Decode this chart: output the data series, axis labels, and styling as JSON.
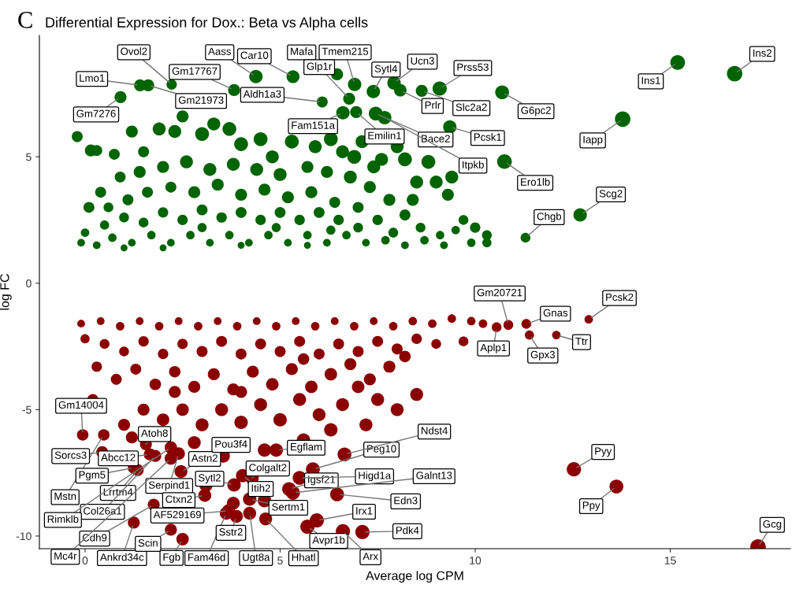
{
  "chart_data": {
    "type": "bubble",
    "title": "Differential Expression for Dox.: Beta vs Alpha cells",
    "xlabel": "Average log CPM",
    "ylabel": "log FC",
    "xlim": [
      -1.17,
      18.08
    ],
    "ylim": [
      -10.5,
      9.8
    ],
    "xticks": [
      0,
      5,
      10,
      15
    ],
    "yticks": [
      -10,
      -5,
      0,
      5
    ],
    "grid": false,
    "series": [
      {
        "color": "#006400",
        "x": [
          16.65,
          15.19,
          13.78,
          12.69,
          11.29,
          10.75,
          10.69,
          9.35,
          9.09,
          8.63,
          8.08,
          7.92,
          7.39,
          6.91,
          6.46,
          5.33,
          4.38,
          6.77,
          6.08,
          6.61,
          6.95,
          7.45,
          7.68,
          3.82,
          1.62,
          2.22,
          1.41,
          0.91,
          -0.2,
          0.15,
          0.3,
          0.75,
          1.2,
          1.5,
          1.9,
          2.3,
          2.5,
          3.0,
          3.3,
          3.7,
          4.0,
          4.5,
          4.8,
          5.3,
          5.9,
          6.3,
          6.6,
          6.9,
          7.1,
          7.6,
          8.0,
          8.2,
          8.8,
          9.4,
          9.3,
          9.0,
          8.4,
          9.7,
          10.0,
          10.3,
          10.3,
          9.9,
          9.5,
          9.1,
          8.6,
          8.2,
          7.8,
          7.3,
          6.8,
          6.2,
          5.7,
          5.0,
          4.4,
          3.8,
          3.2,
          2.6,
          2.0,
          1.4,
          0.9,
          0.4,
          0.1,
          0.6,
          1.1,
          1.6,
          2.2,
          2.8,
          3.4,
          4.0,
          4.6,
          5.2,
          5.8,
          6.4,
          7.0,
          7.5,
          7.9,
          7.0,
          6.5,
          6.0,
          5.5,
          5.0,
          4.5,
          4.0,
          3.5,
          3.0,
          2.5,
          2.0,
          1.5,
          1.0,
          0.5,
          0.0,
          -0.1,
          0.3,
          0.7,
          1.2,
          1.7,
          2.2,
          2.7,
          3.2,
          3.7,
          4.2,
          4.7,
          5.2,
          5.7,
          6.2,
          6.7,
          7.2,
          7.7,
          8.2,
          8.7,
          9.2,
          5.7,
          4.0,
          2.0,
          1.0,
          3.0,
          4.9,
          6.3,
          8.5,
          7.4
        ],
        "values": [
          8.29,
          8.73,
          6.49,
          2.7,
          1.8,
          4.81,
          7.55,
          6.18,
          7.7,
          7.61,
          7.63,
          7.92,
          7.58,
          7.86,
          8.26,
          8.17,
          8.17,
          7.3,
          7.17,
          6.74,
          6.77,
          6.71,
          6.55,
          7.64,
          7.83,
          7.86,
          7.83,
          7.36,
          5.8,
          5.25,
          5.25,
          5.1,
          6.0,
          5.2,
          6.1,
          6.0,
          6.6,
          5.9,
          6.3,
          6.1,
          5.5,
          5.7,
          5.0,
          5.6,
          5.4,
          5.7,
          5.2,
          5.0,
          5.6,
          4.9,
          5.4,
          4.9,
          4.8,
          4.2,
          3.5,
          4.0,
          3.3,
          2.5,
          2.2,
          1.9,
          1.6,
          1.6,
          2.1,
          1.9,
          2.2,
          2.7,
          3.3,
          3.8,
          4.2,
          4.4,
          4.6,
          4.3,
          4.5,
          4.7,
          4.5,
          4.8,
          4.6,
          4.4,
          4.2,
          3.6,
          3.0,
          3.0,
          3.3,
          3.6,
          3.8,
          3.6,
          3.9,
          3.5,
          3.7,
          3.4,
          3.6,
          3.2,
          3.0,
          2.5,
          2.0,
          2.2,
          2.5,
          2.8,
          2.5,
          2.8,
          2.5,
          2.8,
          2.6,
          2.9,
          2.5,
          2.8,
          2.4,
          2.6,
          2.3,
          2.0,
          1.6,
          1.5,
          1.8,
          1.6,
          1.9,
          1.6,
          1.9,
          1.6,
          1.9,
          1.6,
          1.9,
          1.6,
          1.9,
          1.6,
          1.9,
          1.6,
          1.7,
          1.5,
          1.7,
          1.5,
          1.5,
          1.5,
          1.4,
          1.4,
          2.2,
          2.2,
          2.1,
          4.0,
          4.6
        ],
        "sizes": [
          1,
          0.9,
          1,
          0.75,
          0.4,
          0.9,
          0.8,
          0.75,
          0.85,
          0.6,
          0.65,
          0.75,
          0.75,
          0.75,
          0.6,
          0.7,
          0.75,
          0.6,
          0.5,
          0.75,
          0.6,
          0.8,
          0.75,
          0.6,
          0.6,
          0.45,
          0.6,
          0.6,
          0.5,
          0.6,
          0.5,
          0.5,
          0.6,
          0.5,
          0.7,
          0.7,
          0.6,
          0.8,
          0.7,
          0.8,
          0.8,
          0.8,
          0.7,
          0.8,
          0.7,
          0.8,
          0.7,
          0.8,
          0.7,
          0.7,
          0.7,
          0.8,
          0.8,
          0.7,
          0.6,
          0.7,
          0.6,
          0.4,
          0.45,
          0.4,
          0.35,
          0.3,
          0.3,
          0.3,
          0.4,
          0.5,
          0.6,
          0.6,
          0.7,
          0.6,
          0.6,
          0.7,
          0.7,
          0.7,
          0.7,
          0.7,
          0.6,
          0.6,
          0.5,
          0.5,
          0.5,
          0.4,
          0.5,
          0.5,
          0.5,
          0.6,
          0.6,
          0.6,
          0.6,
          0.6,
          0.6,
          0.5,
          0.5,
          0.45,
          0.4,
          0.4,
          0.45,
          0.5,
          0.45,
          0.5,
          0.45,
          0.5,
          0.45,
          0.5,
          0.45,
          0.45,
          0.4,
          0.4,
          0.35,
          0.3,
          0.25,
          0.25,
          0.3,
          0.25,
          0.3,
          0.25,
          0.3,
          0.25,
          0.3,
          0.25,
          0.3,
          0.25,
          0.3,
          0.25,
          0.3,
          0.25,
          0.3,
          0.25,
          0.3,
          0.25,
          0.2,
          0.2,
          0.2,
          0.2,
          0.35,
          0.35,
          0.35,
          0.7,
          0.7
        ]
      },
      {
        "color": "#8b0000",
        "x": [
          17.25,
          13.62,
          12.53,
          12.91,
          12.08,
          11.39,
          11.31,
          10.85,
          10.55,
          -0.06,
          1.56,
          0.48,
          0.44,
          1.66,
          1.25,
          1.35,
          1.8,
          2.2,
          2.4,
          1.76,
          2.2,
          1.25,
          2.2,
          3.68,
          2.5,
          3.62,
          3.88,
          4.22,
          4.63,
          3.07,
          2.46,
          3.82,
          3.54,
          4.04,
          4.22,
          4.28,
          5.23,
          4.9,
          5.5,
          5.33,
          5.84,
          6.65,
          6.46,
          5.94,
          5.7,
          7.11,
          6.61,
          -0.1,
          0.4,
          0.9,
          1.4,
          1.9,
          2.4,
          2.9,
          3.4,
          3.9,
          4.4,
          4.9,
          5.4,
          5.9,
          6.4,
          6.9,
          7.4,
          7.9,
          8.4,
          8.9,
          9.4,
          9.9,
          9.7,
          9.0,
          8.5,
          8.0,
          7.5,
          7.0,
          6.5,
          6.0,
          5.5,
          5.0,
          4.5,
          4.0,
          3.5,
          3.0,
          2.5,
          2.0,
          1.5,
          1.0,
          0.5,
          0.0,
          0.3,
          0.8,
          1.3,
          1.8,
          2.3,
          2.8,
          3.3,
          3.8,
          4.3,
          4.8,
          5.3,
          5.8,
          6.3,
          6.8,
          7.3,
          7.8,
          8.2,
          8.5,
          8.0,
          7.5,
          7.0,
          6.6,
          6.0,
          5.5,
          5.0,
          4.5,
          4.0,
          3.5,
          3.0,
          2.5,
          2.0,
          1.5,
          1.0,
          0.2,
          1.2,
          2.8,
          4.6,
          5.6,
          6.3,
          7.2,
          2.3,
          4.0,
          5.6,
          10.2,
          3.8,
          4.6,
          3.1
        ],
        "values": [
          -10.43,
          -8.04,
          -7.36,
          -1.43,
          -2.05,
          -2.05,
          -1.61,
          -1.65,
          -1.74,
          -6.0,
          -6.37,
          -6.0,
          -6.68,
          -6.77,
          -7.3,
          -7.39,
          -6.83,
          -6.5,
          -6.74,
          -8.76,
          -6.93,
          -9.47,
          -9.75,
          -9.0,
          -10.12,
          -9.1,
          -9.22,
          -9.1,
          -9.32,
          -8.39,
          -7.45,
          -7.98,
          -6.83,
          -7.61,
          -8.54,
          -7.7,
          -8.14,
          -6.6,
          -7.7,
          -8.29,
          -7.36,
          -6.77,
          -8.35,
          -9.38,
          -9.63,
          -9.84,
          -9.81,
          -1.6,
          -1.5,
          -1.7,
          -1.5,
          -1.7,
          -1.5,
          -1.7,
          -1.5,
          -1.7,
          -1.5,
          -1.7,
          -1.5,
          -1.7,
          -1.5,
          -1.7,
          -1.5,
          -1.7,
          -1.5,
          -1.6,
          -1.4,
          -1.5,
          -2.3,
          -2.4,
          -2.2,
          -2.6,
          -2.3,
          -2.7,
          -2.4,
          -2.8,
          -2.3,
          -2.7,
          -2.4,
          -2.8,
          -2.3,
          -2.7,
          -2.4,
          -2.8,
          -2.3,
          -2.7,
          -2.4,
          -2.2,
          -3.3,
          -3.8,
          -3.4,
          -4.0,
          -3.5,
          -4.1,
          -3.6,
          -4.2,
          -3.5,
          -4.0,
          -3.4,
          -4.1,
          -3.6,
          -3.2,
          -3.8,
          -3.3,
          -2.9,
          -4.4,
          -5.0,
          -4.6,
          -4.1,
          -4.8,
          -5.2,
          -4.6,
          -5.4,
          -4.8,
          -5.5,
          -5.0,
          -5.6,
          -5.0,
          -5.4,
          -5.0,
          -5.6,
          -4.6,
          -6.1,
          -6.3,
          -6.6,
          -6.2,
          -5.8,
          -5.6,
          -4.3,
          -4.3,
          -3.0,
          -1.6,
          -8.7,
          -8.6,
          -8.0
        ],
        "sizes": [
          1,
          0.8,
          0.85,
          0.3,
          0.3,
          0.35,
          0.4,
          0.4,
          0.4,
          0.55,
          0.6,
          0.55,
          0.6,
          0.6,
          0.6,
          0.6,
          0.6,
          0.65,
          0.65,
          0.6,
          0.65,
          0.6,
          0.6,
          0.7,
          0.65,
          0.7,
          0.7,
          0.7,
          0.7,
          0.7,
          0.7,
          0.75,
          0.75,
          0.75,
          0.75,
          0.75,
          0.8,
          0.75,
          0.8,
          0.8,
          0.8,
          0.8,
          0.8,
          0.85,
          0.85,
          0.85,
          0.85,
          0.25,
          0.25,
          0.3,
          0.25,
          0.3,
          0.25,
          0.3,
          0.25,
          0.3,
          0.25,
          0.3,
          0.25,
          0.3,
          0.25,
          0.3,
          0.25,
          0.3,
          0.3,
          0.3,
          0.3,
          0.3,
          0.4,
          0.4,
          0.45,
          0.5,
          0.5,
          0.5,
          0.5,
          0.5,
          0.5,
          0.5,
          0.5,
          0.5,
          0.5,
          0.5,
          0.45,
          0.45,
          0.45,
          0.4,
          0.4,
          0.35,
          0.45,
          0.5,
          0.5,
          0.55,
          0.55,
          0.6,
          0.6,
          0.6,
          0.6,
          0.65,
          0.6,
          0.65,
          0.65,
          0.6,
          0.6,
          0.6,
          0.55,
          0.7,
          0.7,
          0.7,
          0.65,
          0.7,
          0.7,
          0.7,
          0.75,
          0.7,
          0.75,
          0.7,
          0.7,
          0.65,
          0.65,
          0.6,
          0.6,
          0.5,
          0.6,
          0.7,
          0.75,
          0.75,
          0.75,
          0.7,
          0.6,
          0.6,
          0.55,
          0.3,
          0.7,
          0.75,
          0.7
        ]
      }
    ],
    "annotations": [
      "C",
      {
        "text": "Ins2",
        "x": 16.65,
        "y": 8.29
      },
      {
        "text": "Ins1",
        "x": 15.19,
        "y": 8.73
      },
      {
        "text": "Iapp",
        "x": 13.78,
        "y": 6.49
      },
      {
        "text": "Scg2",
        "x": 12.69,
        "y": 2.7
      },
      {
        "text": "Chgb",
        "x": 11.29,
        "y": 1.8
      },
      {
        "text": "Ero1lb",
        "x": 10.75,
        "y": 4.81
      },
      {
        "text": "G6pc2",
        "x": 10.69,
        "y": 7.55
      },
      {
        "text": "Pcsk1",
        "x": 9.35,
        "y": 6.18
      },
      {
        "text": "Prss53",
        "x": 9.09,
        "y": 7.7
      },
      {
        "text": "Slc2a2",
        "x": 8.63,
        "y": 7.61
      },
      {
        "text": "Prlr",
        "x": 8.08,
        "y": 7.63
      },
      {
        "text": "Ucn3",
        "x": 7.92,
        "y": 7.92
      },
      {
        "text": "Sytl4",
        "x": 7.39,
        "y": 7.58
      },
      {
        "text": "Tmem215",
        "x": 6.91,
        "y": 7.86
      },
      {
        "text": "Mafa",
        "x": 6.46,
        "y": 8.26
      },
      {
        "text": "Car10",
        "x": 5.33,
        "y": 8.17
      },
      {
        "text": "Aass",
        "x": 4.38,
        "y": 8.17
      },
      {
        "text": "Glp1r",
        "x": 6.77,
        "y": 7.3
      },
      {
        "text": "Aldh1a3",
        "x": 6.08,
        "y": 7.17
      },
      {
        "text": "Fam151a",
        "x": 6.61,
        "y": 6.74
      },
      {
        "text": "Emilin1",
        "x": 6.95,
        "y": 6.77
      },
      {
        "text": "Bace2",
        "x": 7.45,
        "y": 6.71
      },
      {
        "text": "Itpkb",
        "x": 7.68,
        "y": 6.55
      },
      {
        "text": "Gm17767",
        "x": 3.82,
        "y": 7.64
      },
      {
        "text": "Gm21973",
        "x": 1.62,
        "y": 7.83
      },
      {
        "text": "Ovol2",
        "x": 2.22,
        "y": 7.86
      },
      {
        "text": "Lmo1",
        "x": 1.41,
        "y": 7.83
      },
      {
        "text": "Gm7276",
        "x": 0.91,
        "y": 7.36
      },
      {
        "text": "Gcg",
        "x": 17.25,
        "y": -10.43
      },
      {
        "text": "Ppy",
        "x": 13.62,
        "y": -8.04
      },
      {
        "text": "Pyy",
        "x": 12.53,
        "y": -7.36
      },
      {
        "text": "Pcsk2",
        "x": 12.91,
        "y": -1.43
      },
      {
        "text": "Ttr",
        "x": 12.08,
        "y": -2.05
      },
      {
        "text": "Gpx3",
        "x": 11.39,
        "y": -2.05
      },
      {
        "text": "Gnas",
        "x": 11.31,
        "y": -1.61
      },
      {
        "text": "Gm20721",
        "x": 10.85,
        "y": -1.65
      },
      {
        "text": "Aplp1",
        "x": 10.55,
        "y": -1.74
      },
      {
        "text": "Gm14004",
        "x": -0.06,
        "y": -6.0
      },
      {
        "text": "Atoh8",
        "x": 1.56,
        "y": -6.37
      },
      {
        "text": "Mstn",
        "x": 0.48,
        "y": -6.0
      },
      {
        "text": "Sorcs3",
        "x": 0.44,
        "y": -6.68
      },
      {
        "text": "Abcc12",
        "x": 1.66,
        "y": -6.77
      },
      {
        "text": "Pgm5",
        "x": 1.25,
        "y": -7.3
      },
      {
        "text": "Lrrtm4",
        "x": 1.35,
        "y": -7.39
      },
      {
        "text": "Col26a1",
        "x": 1.8,
        "y": -6.83
      },
      {
        "text": "Rimklb",
        "x": 2.2,
        "y": -6.5
      },
      {
        "text": "Serpind1",
        "x": 2.4,
        "y": -6.74
      },
      {
        "text": "Cdh9",
        "x": 1.76,
        "y": -8.76
      },
      {
        "text": "Mc4r",
        "x": 2.2,
        "y": -6.93
      },
      {
        "text": "Ankrd34c",
        "x": 1.25,
        "y": -9.47
      },
      {
        "text": "Scin",
        "x": 2.2,
        "y": -9.75
      },
      {
        "text": "AF529169",
        "x": 3.68,
        "y": -9.0
      },
      {
        "text": "Fgb",
        "x": 2.5,
        "y": -10.12
      },
      {
        "text": "Fam46d",
        "x": 3.62,
        "y": -9.1
      },
      {
        "text": "Sstr2",
        "x": 3.88,
        "y": -9.22
      },
      {
        "text": "Ugt8a",
        "x": 4.22,
        "y": -9.1
      },
      {
        "text": "Hhatl",
        "x": 4.63,
        "y": -9.32
      },
      {
        "text": "Ctxn2",
        "x": 3.07,
        "y": -8.39
      },
      {
        "text": "Astn2",
        "x": 2.46,
        "y": -7.45
      },
      {
        "text": "Sytl2",
        "x": 3.82,
        "y": -7.98
      },
      {
        "text": "Pou3f4",
        "x": 3.54,
        "y": -6.83
      },
      {
        "text": "Itih2",
        "x": 4.04,
        "y": -7.61
      },
      {
        "text": "Sertm1",
        "x": 4.22,
        "y": -8.54
      },
      {
        "text": "Colgalt2",
        "x": 4.28,
        "y": -7.7
      },
      {
        "text": "Igsf21",
        "x": 5.23,
        "y": -8.14
      },
      {
        "text": "Egflam",
        "x": 4.9,
        "y": -6.6
      },
      {
        "text": "Higd1a",
        "x": 5.5,
        "y": -7.7
      },
      {
        "text": "Galnt13",
        "x": 5.33,
        "y": -8.29
      },
      {
        "text": "Peg10",
        "x": 5.84,
        "y": -7.36
      },
      {
        "text": "Ndst4",
        "x": 6.65,
        "y": -6.77
      },
      {
        "text": "Edn3",
        "x": 6.46,
        "y": -8.35
      },
      {
        "text": "Irx1",
        "x": 5.94,
        "y": -9.38
      },
      {
        "text": "Avpr1b",
        "x": 5.7,
        "y": -9.63
      },
      {
        "text": "Pdk4",
        "x": 7.11,
        "y": -9.84
      },
      {
        "text": "Arx",
        "x": 6.61,
        "y": -9.81
      }
    ]
  }
}
